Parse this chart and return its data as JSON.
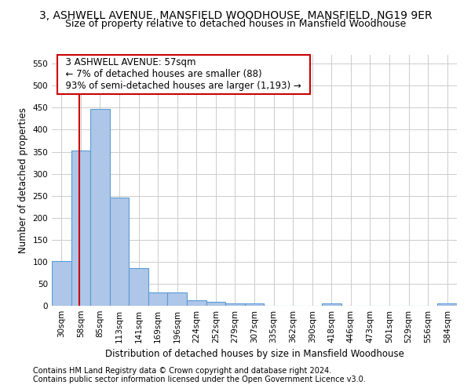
{
  "title": "3, ASHWELL AVENUE, MANSFIELD WOODHOUSE, MANSFIELD, NG19 9ER",
  "subtitle": "Size of property relative to detached houses in Mansfield Woodhouse",
  "xlabel": "Distribution of detached houses by size in Mansfield Woodhouse",
  "ylabel": "Number of detached properties",
  "footnote1": "Contains HM Land Registry data © Crown copyright and database right 2024.",
  "footnote2": "Contains public sector information licensed under the Open Government Licence v3.0.",
  "categories": [
    "30sqm",
    "58sqm",
    "85sqm",
    "113sqm",
    "141sqm",
    "169sqm",
    "196sqm",
    "224sqm",
    "252sqm",
    "279sqm",
    "307sqm",
    "335sqm",
    "362sqm",
    "390sqm",
    "418sqm",
    "446sqm",
    "473sqm",
    "501sqm",
    "529sqm",
    "556sqm",
    "584sqm"
  ],
  "values": [
    102,
    353,
    447,
    245,
    86,
    30,
    30,
    13,
    9,
    5,
    5,
    0,
    0,
    0,
    5,
    0,
    0,
    0,
    0,
    0,
    5
  ],
  "bar_color": "#aec6e8",
  "bar_edge_color": "#5b9bd5",
  "annotation_text": "  3 ASHWELL AVENUE: 57sqm  \n  ← 7% of detached houses are smaller (88)  \n  93% of semi-detached houses are larger (1,193) →  ",
  "annotation_box_color": "#ffffff",
  "annotation_box_edge": "#cc0000",
  "vline_color": "#cc0000",
  "vline_x_bar_index": 0.93,
  "ylim": [
    0,
    570
  ],
  "title_fontsize": 10,
  "subtitle_fontsize": 9,
  "axis_label_fontsize": 8.5,
  "tick_fontsize": 7.5,
  "annotation_fontsize": 8.5,
  "footnote_fontsize": 7,
  "background_color": "#ffffff",
  "grid_color": "#cccccc"
}
